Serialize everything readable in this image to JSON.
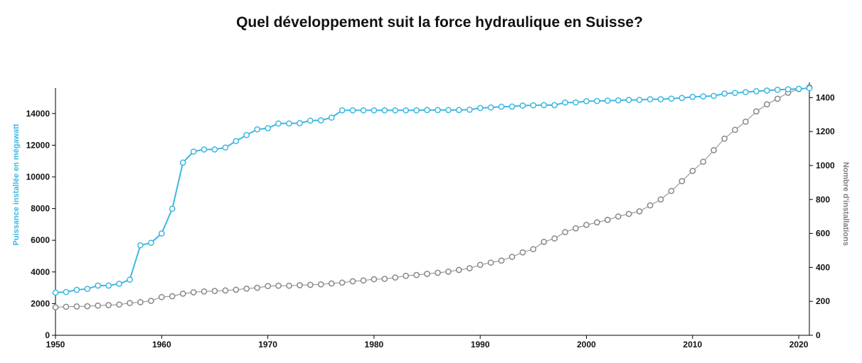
{
  "chart_data": {
    "type": "line",
    "title": "Quel développement suit la force hydraulique en Suisse?",
    "ylabel_left": "Puissance installée en mégawatt",
    "ylabel_right": "Nombre d'installations",
    "x_tick_labels": [
      "1950",
      "1960",
      "1970",
      "1980",
      "1990",
      "2000",
      "2010",
      "2020"
    ],
    "y_left_tick_labels": [
      "0",
      "2000",
      "4000",
      "6000",
      "8000",
      "10000",
      "12000",
      "14000"
    ],
    "y_right_tick_labels": [
      "0",
      "200",
      "400",
      "600",
      "800",
      "1000",
      "1200",
      "1400"
    ],
    "xlim": [
      1950,
      2021
    ],
    "ylim_left": [
      0,
      15650
    ],
    "ylim_right": [
      0,
      1460
    ],
    "grid": false,
    "x": [
      1950,
      1951,
      1952,
      1953,
      1954,
      1955,
      1956,
      1957,
      1958,
      1959,
      1960,
      1961,
      1962,
      1963,
      1964,
      1965,
      1966,
      1967,
      1968,
      1969,
      1970,
      1971,
      1972,
      1973,
      1974,
      1975,
      1976,
      1977,
      1978,
      1979,
      1980,
      1981,
      1982,
      1983,
      1984,
      1985,
      1986,
      1987,
      1988,
      1989,
      1990,
      1991,
      1992,
      1993,
      1994,
      1995,
      1996,
      1997,
      1998,
      1999,
      2000,
      2001,
      2002,
      2003,
      2004,
      2005,
      2006,
      2007,
      2008,
      2009,
      2010,
      2011,
      2012,
      2013,
      2014,
      2015,
      2016,
      2017,
      2018,
      2019,
      2020,
      2021
    ],
    "series": [
      {
        "color": "#3db8e0",
        "axis": "left",
        "values": [
          2700,
          2730,
          2870,
          2930,
          3140,
          3140,
          3250,
          3510,
          5680,
          5840,
          6430,
          7990,
          10900,
          11600,
          11730,
          11730,
          11850,
          12260,
          12640,
          13000,
          13070,
          13370,
          13370,
          13390,
          13550,
          13570,
          13740,
          14200,
          14200,
          14200,
          14200,
          14200,
          14200,
          14200,
          14200,
          14220,
          14220,
          14220,
          14220,
          14240,
          14350,
          14380,
          14430,
          14440,
          14500,
          14520,
          14530,
          14530,
          14690,
          14700,
          14780,
          14790,
          14810,
          14830,
          14860,
          14860,
          14900,
          14900,
          14940,
          14980,
          15050,
          15080,
          15110,
          15260,
          15300,
          15350,
          15410,
          15450,
          15500,
          15530,
          15560,
          15600
        ]
      },
      {
        "color": "#888888",
        "axis": "right",
        "values": [
          165,
          168,
          170,
          171,
          175,
          178,
          181,
          190,
          195,
          203,
          225,
          230,
          245,
          253,
          258,
          261,
          264,
          268,
          275,
          280,
          290,
          292,
          292,
          295,
          297,
          300,
          305,
          310,
          318,
          323,
          330,
          332,
          340,
          350,
          355,
          362,
          368,
          375,
          385,
          395,
          415,
          428,
          440,
          462,
          488,
          507,
          550,
          570,
          608,
          630,
          650,
          665,
          680,
          700,
          715,
          730,
          765,
          800,
          850,
          908,
          968,
          1022,
          1090,
          1158,
          1210,
          1258,
          1318,
          1360,
          1393,
          1428,
          1450,
          1460
        ]
      }
    ]
  }
}
